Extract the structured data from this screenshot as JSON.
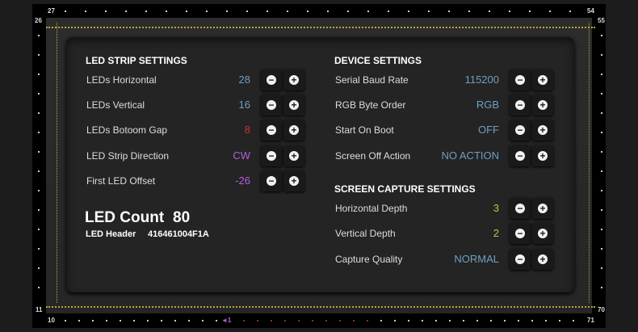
{
  "frame_labels": {
    "top_left": "27",
    "top_right": "54",
    "left_top": "26",
    "right_top": "55",
    "left_bottom": "11",
    "right_bottom": "70",
    "bottom_left": "10",
    "bottom_right": "71",
    "start_marker": "◄1"
  },
  "colors": {
    "blue": "#6f9fc0",
    "red": "#d03030",
    "purple": "#b45fd8",
    "yellow": "#c8c040",
    "guide": "#b8a832"
  },
  "led_strip": {
    "title": "LED STRIP SETTINGS",
    "rows": [
      {
        "label": "LEDs Horizontal",
        "value": "28",
        "color": "#6f9fc0"
      },
      {
        "label": "LEDs Vertical",
        "value": "16",
        "color": "#6f9fc0"
      },
      {
        "label": "LEDs Botoom Gap",
        "value": "8",
        "color": "#d03030"
      },
      {
        "label": "LED Strip Direction",
        "value": "CW",
        "color": "#b45fd8"
      },
      {
        "label": "First LED Offset",
        "value": "-26",
        "color": "#b45fd8"
      }
    ]
  },
  "led_count": {
    "label": "LED Count",
    "value": "80"
  },
  "led_header": {
    "label": "LED Header",
    "value": "416461004F1A"
  },
  "device": {
    "title": "DEVICE SETTINGS",
    "rows": [
      {
        "label": "Serial Baud Rate",
        "value": "115200",
        "color": "#6f9fc0"
      },
      {
        "label": "RGB Byte Order",
        "value": "RGB",
        "color": "#6f9fc0"
      },
      {
        "label": "Start On Boot",
        "value": "OFF",
        "color": "#6f9fc0"
      },
      {
        "label": "Screen Off Action",
        "value": "NO ACTION",
        "color": "#6f9fc0"
      }
    ]
  },
  "capture": {
    "title": "SCREEN CAPTURE SETTINGS",
    "rows": [
      {
        "label": "Horizontal Depth",
        "value": "3",
        "color": "#c8c040"
      },
      {
        "label": "Vertical Depth",
        "value": "2",
        "color": "#c8c040"
      },
      {
        "label": "Capture Quality",
        "value": "NORMAL",
        "color": "#6f9fc0"
      }
    ]
  },
  "buttons": {
    "minus": "−",
    "plus": "+"
  }
}
